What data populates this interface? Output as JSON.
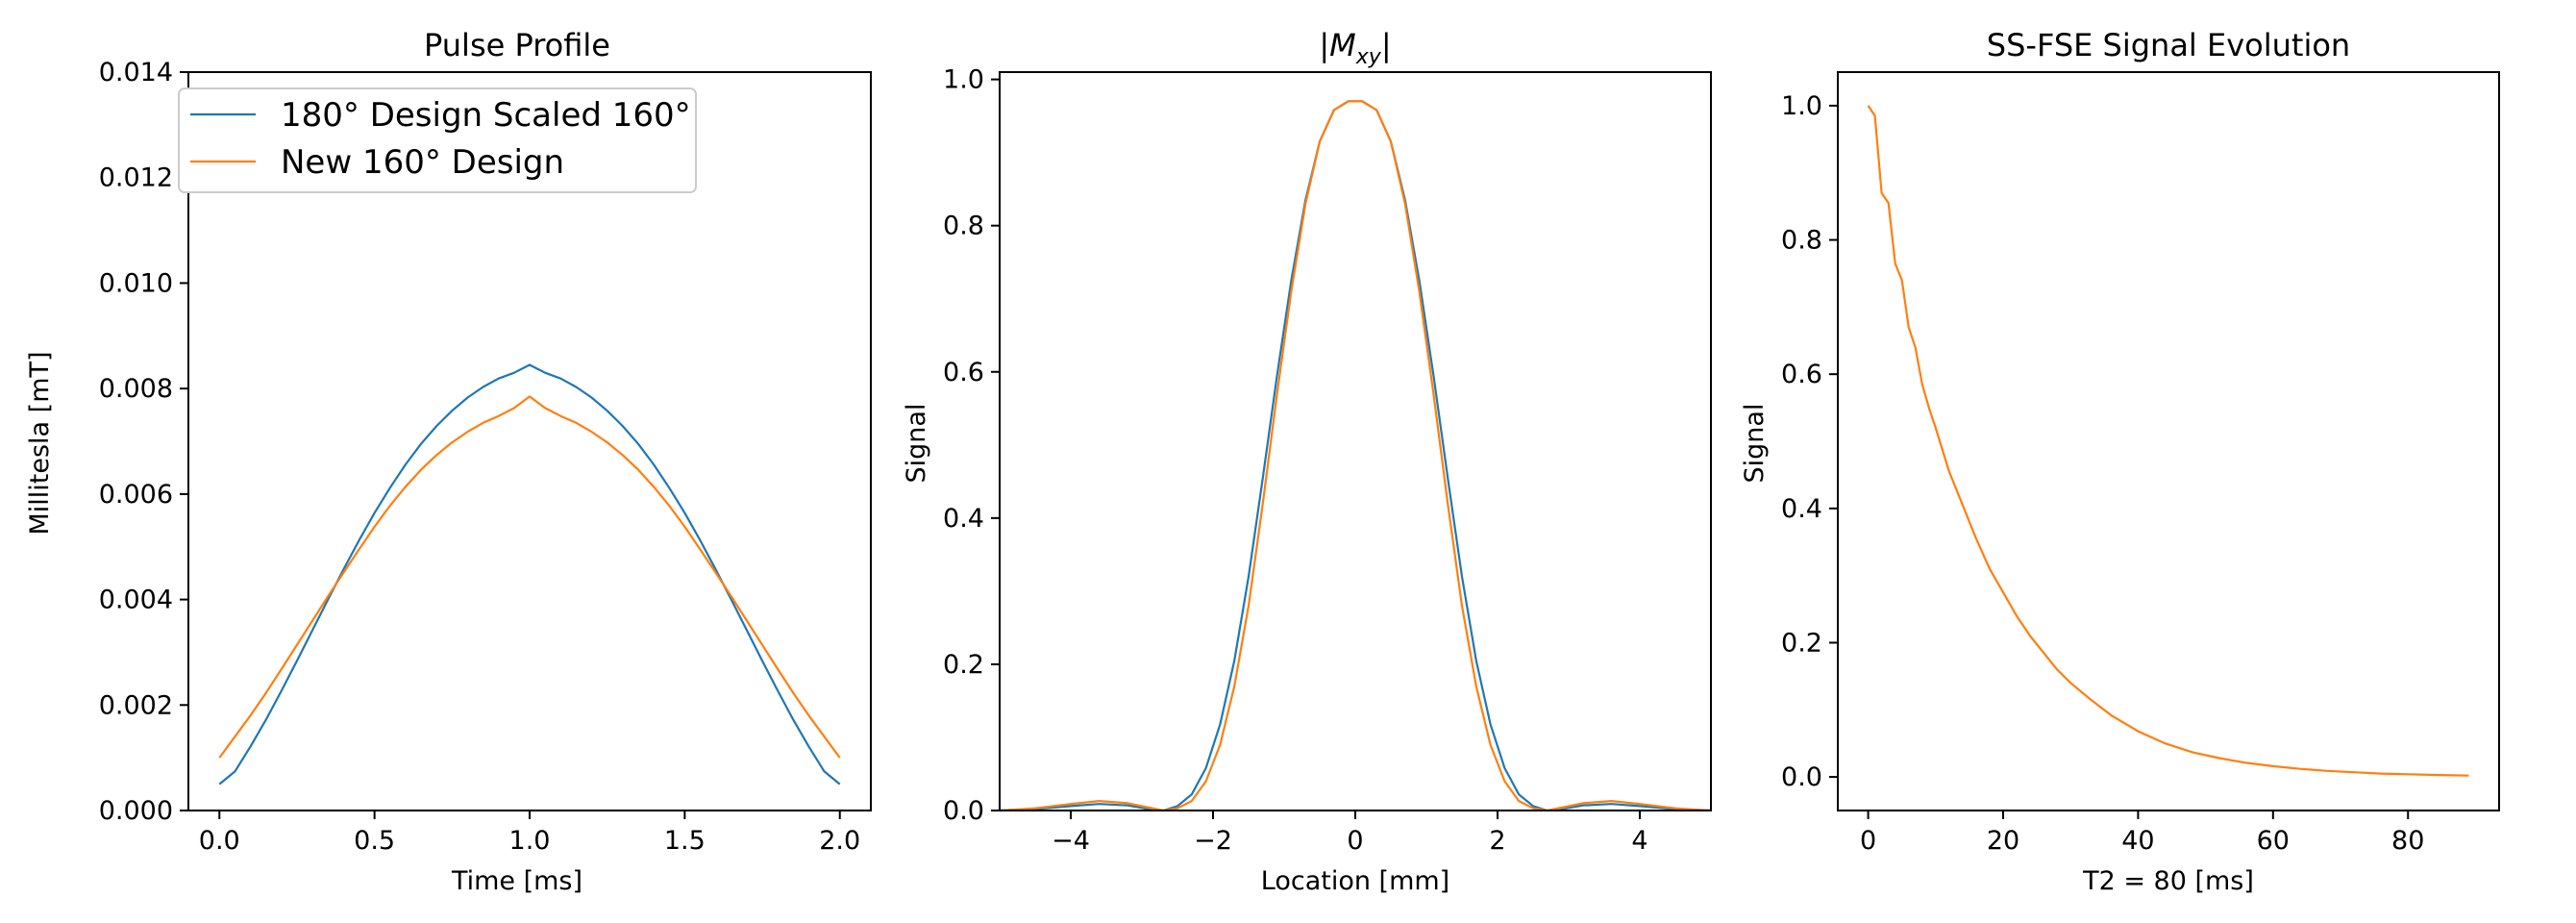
{
  "colors": {
    "blue": "#1f77b4",
    "orange": "#ff7f0e"
  },
  "chart_data": [
    {
      "type": "line",
      "title": "Pulse Profile",
      "xlabel": "Time [ms]",
      "ylabel": "Millitesla [mT]",
      "xlim": [
        -0.1,
        2.1
      ],
      "ylim": [
        0,
        0.014
      ],
      "xticks": [
        0.0,
        0.5,
        1.0,
        1.5,
        2.0
      ],
      "xtick_labels": [
        "0.0",
        "0.5",
        "1.0",
        "1.5",
        "2.0"
      ],
      "yticks": [
        0,
        0.002,
        0.004,
        0.006,
        0.008,
        0.01,
        0.012,
        0.014
      ],
      "ytick_labels": [
        "0.000",
        "0.002",
        "0.004",
        "0.006",
        "0.008",
        "0.010",
        "0.012",
        "0.014"
      ],
      "legend": "upper-left",
      "series": [
        {
          "name": "180° Design Scaled 160°",
          "color": "#1f77b4",
          "x": [
            0.0,
            0.05,
            0.1,
            0.15,
            0.2,
            0.25,
            0.3,
            0.35,
            0.4,
            0.45,
            0.5,
            0.55,
            0.6,
            0.65,
            0.7,
            0.75,
            0.8,
            0.85,
            0.9,
            0.95,
            1.0,
            1.05,
            1.1,
            1.15,
            1.2,
            1.25,
            1.3,
            1.35,
            1.4,
            1.45,
            1.5,
            1.55,
            1.6,
            1.65,
            1.7,
            1.75,
            1.8,
            1.85,
            1.9,
            1.95,
            2.0
          ],
          "y": [
            0.0005,
            0.00074,
            0.00121,
            0.00172,
            0.00227,
            0.00284,
            0.00342,
            0.004,
            0.00457,
            0.00512,
            0.00564,
            0.00612,
            0.00656,
            0.00695,
            0.00729,
            0.00758,
            0.00783,
            0.00803,
            0.00819,
            0.0083,
            0.00845,
            0.0083,
            0.00819,
            0.00803,
            0.00783,
            0.00758,
            0.00729,
            0.00695,
            0.00656,
            0.00612,
            0.00564,
            0.00512,
            0.00457,
            0.004,
            0.00342,
            0.00284,
            0.00227,
            0.00172,
            0.00121,
            0.00074,
            0.0005
          ]
        },
        {
          "name": "New 160° Design",
          "color": "#ff7f0e",
          "x": [
            0.0,
            0.05,
            0.1,
            0.15,
            0.2,
            0.25,
            0.3,
            0.35,
            0.4,
            0.45,
            0.5,
            0.55,
            0.6,
            0.65,
            0.7,
            0.75,
            0.8,
            0.85,
            0.9,
            0.95,
            1.0,
            1.05,
            1.1,
            1.15,
            1.2,
            1.25,
            1.3,
            1.35,
            1.4,
            1.45,
            1.5,
            1.55,
            1.6,
            1.65,
            1.7,
            1.75,
            1.8,
            1.85,
            1.9,
            1.95,
            2.0
          ],
          "y": [
            0.001,
            0.0014,
            0.0018,
            0.00223,
            0.00268,
            0.00314,
            0.0036,
            0.00406,
            0.00451,
            0.00495,
            0.00538,
            0.00578,
            0.00614,
            0.00646,
            0.00674,
            0.00698,
            0.00718,
            0.00735,
            0.00748,
            0.00763,
            0.00785,
            0.00763,
            0.00748,
            0.00735,
            0.00718,
            0.00698,
            0.00674,
            0.00646,
            0.00614,
            0.00578,
            0.00538,
            0.00495,
            0.00451,
            0.00406,
            0.0036,
            0.00314,
            0.00268,
            0.00223,
            0.0018,
            0.0014,
            0.001
          ]
        }
      ]
    },
    {
      "type": "line",
      "title": "|Mxy|",
      "xlabel": "Location [mm]",
      "ylabel": "Signal",
      "xlim": [
        -5,
        5
      ],
      "ylim": [
        0,
        1.01
      ],
      "xticks": [
        -4,
        -2,
        0,
        2,
        4
      ],
      "xtick_labels": [
        "−4",
        "−2",
        "0",
        "2",
        "4"
      ],
      "yticks": [
        0,
        0.2,
        0.4,
        0.6,
        0.8,
        1.0
      ],
      "ytick_labels": [
        "0.0",
        "0.2",
        "0.4",
        "0.6",
        "0.8",
        "1.0"
      ],
      "series": [
        {
          "color": "#1f77b4",
          "x": [
            -5,
            -4.5,
            -4,
            -3.6,
            -3.2,
            -2.9,
            -2.7,
            -2.5,
            -2.3,
            -2.1,
            -1.9,
            -1.7,
            -1.5,
            -1.3,
            -1.1,
            -0.9,
            -0.7,
            -0.5,
            -0.3,
            -0.1,
            0,
            0.1,
            0.3,
            0.5,
            0.7,
            0.9,
            1.1,
            1.3,
            1.5,
            1.7,
            1.9,
            2.1,
            2.3,
            2.5,
            2.7,
            2.9,
            3.2,
            3.6,
            4,
            4.5,
            5
          ],
          "y": [
            0,
            0.002,
            0.006,
            0.009,
            0.007,
            0.002,
            0.0,
            0.006,
            0.022,
            0.058,
            0.118,
            0.205,
            0.32,
            0.455,
            0.595,
            0.725,
            0.835,
            0.915,
            0.958,
            0.97,
            0.97,
            0.97,
            0.958,
            0.915,
            0.835,
            0.725,
            0.595,
            0.455,
            0.32,
            0.205,
            0.118,
            0.058,
            0.022,
            0.006,
            0.0,
            0.002,
            0.007,
            0.009,
            0.006,
            0.002,
            0
          ]
        },
        {
          "color": "#ff7f0e",
          "x": [
            -5,
            -4.5,
            -4,
            -3.6,
            -3.2,
            -2.9,
            -2.7,
            -2.5,
            -2.3,
            -2.1,
            -1.9,
            -1.7,
            -1.5,
            -1.3,
            -1.1,
            -0.9,
            -0.7,
            -0.5,
            -0.3,
            -0.1,
            0,
            0.1,
            0.3,
            0.5,
            0.7,
            0.9,
            1.1,
            1.3,
            1.5,
            1.7,
            1.9,
            2.1,
            2.3,
            2.5,
            2.7,
            2.9,
            3.2,
            3.6,
            4,
            4.5,
            5
          ],
          "y": [
            0,
            0.003,
            0.009,
            0.013,
            0.01,
            0.004,
            0.0,
            0.003,
            0.013,
            0.04,
            0.09,
            0.17,
            0.28,
            0.42,
            0.57,
            0.71,
            0.83,
            0.915,
            0.958,
            0.97,
            0.97,
            0.97,
            0.958,
            0.915,
            0.83,
            0.71,
            0.57,
            0.42,
            0.28,
            0.17,
            0.09,
            0.04,
            0.013,
            0.003,
            0.0,
            0.004,
            0.01,
            0.013,
            0.009,
            0.003,
            0
          ]
        }
      ]
    },
    {
      "type": "line",
      "title": "SS-FSE Signal Evolution",
      "xlabel": "T2 = 80 [ms]",
      "ylabel": "Signal",
      "xlim": [
        -4.5,
        93.5
      ],
      "ylim": [
        -0.05,
        1.05
      ],
      "xticks": [
        0,
        20,
        40,
        60,
        80
      ],
      "xtick_labels": [
        "0",
        "20",
        "40",
        "60",
        "80"
      ],
      "yticks": [
        0,
        0.2,
        0.4,
        0.6,
        0.8,
        1.0
      ],
      "ytick_labels": [
        "0.0",
        "0.2",
        "0.4",
        "0.6",
        "0.8",
        "1.0"
      ],
      "series": [
        {
          "color": "#ff7f0e",
          "x": [
            0,
            1,
            2,
            3,
            4,
            5,
            6,
            7,
            8,
            9,
            10,
            12,
            14,
            16,
            18,
            20,
            22,
            24,
            26,
            28,
            30,
            33,
            36,
            40,
            44,
            48,
            52,
            56,
            60,
            64,
            68,
            72,
            76,
            80,
            84,
            89
          ],
          "y": [
            1.0,
            0.985,
            0.87,
            0.855,
            0.765,
            0.74,
            0.67,
            0.64,
            0.585,
            0.55,
            0.52,
            0.455,
            0.405,
            0.355,
            0.31,
            0.275,
            0.24,
            0.21,
            0.185,
            0.16,
            0.14,
            0.115,
            0.092,
            0.068,
            0.05,
            0.037,
            0.028,
            0.021,
            0.016,
            0.012,
            0.009,
            0.007,
            0.005,
            0.004,
            0.003,
            0.002
          ]
        }
      ]
    }
  ]
}
